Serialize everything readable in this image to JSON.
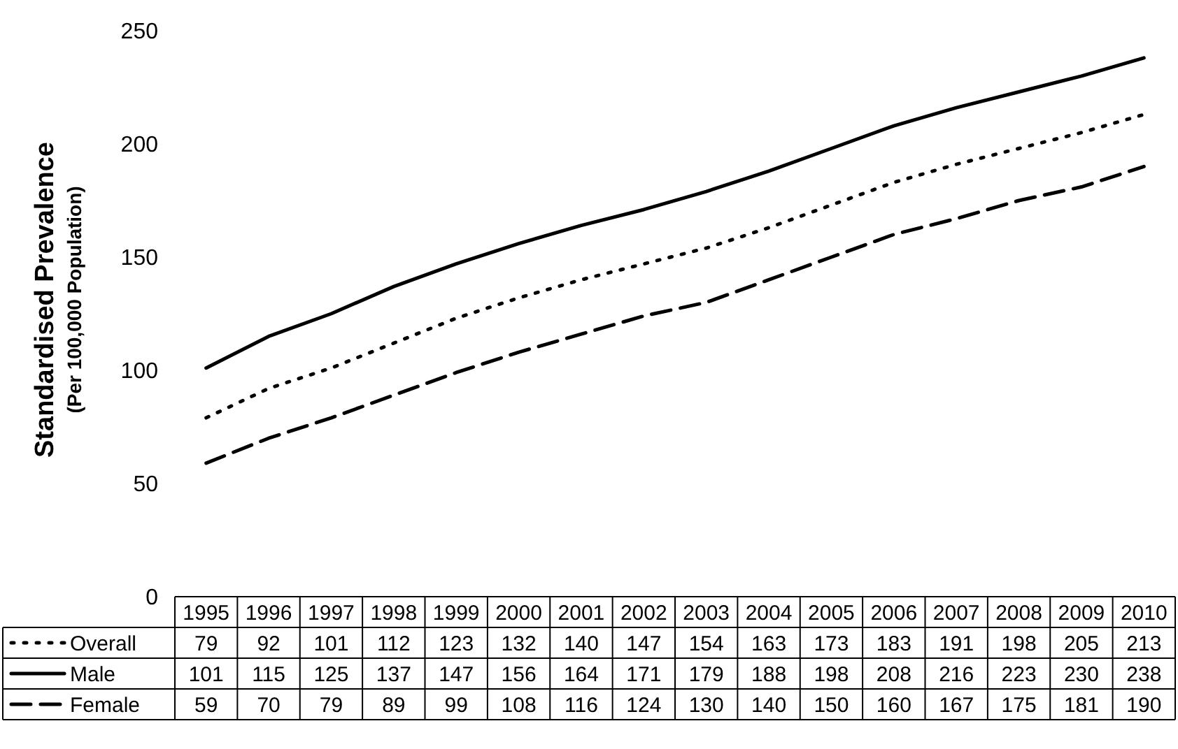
{
  "chart_data": {
    "type": "line",
    "ylabel": "Standardised Prevalence\n(Per 100,000 Population)",
    "categories": [
      "1995",
      "1996",
      "1997",
      "1998",
      "1999",
      "2000",
      "2001",
      "2002",
      "2003",
      "2004",
      "2005",
      "2006",
      "2007",
      "2008",
      "2009",
      "2010"
    ],
    "series": [
      {
        "name": "Overall",
        "color": "#000000",
        "line_style": "dotted",
        "values": [
          79,
          92,
          101,
          112,
          123,
          132,
          140,
          147,
          154,
          163,
          173,
          183,
          191,
          198,
          205,
          213
        ]
      },
      {
        "name": "Male",
        "color": "#000000",
        "line_style": "solid",
        "values": [
          101,
          115,
          125,
          137,
          147,
          156,
          164,
          171,
          179,
          188,
          198,
          208,
          216,
          223,
          230,
          238
        ]
      },
      {
        "name": "Female",
        "color": "#000000",
        "line_style": "dashed",
        "values": [
          59,
          70,
          79,
          89,
          99,
          108,
          116,
          124,
          130,
          140,
          150,
          160,
          167,
          175,
          181,
          190
        ]
      }
    ],
    "ylim": [
      0,
      250
    ],
    "yticks": [
      0,
      50,
      100,
      150,
      200,
      250
    ],
    "grid": false,
    "legend": "bottom",
    "data_labels": true,
    "marker": "none"
  }
}
